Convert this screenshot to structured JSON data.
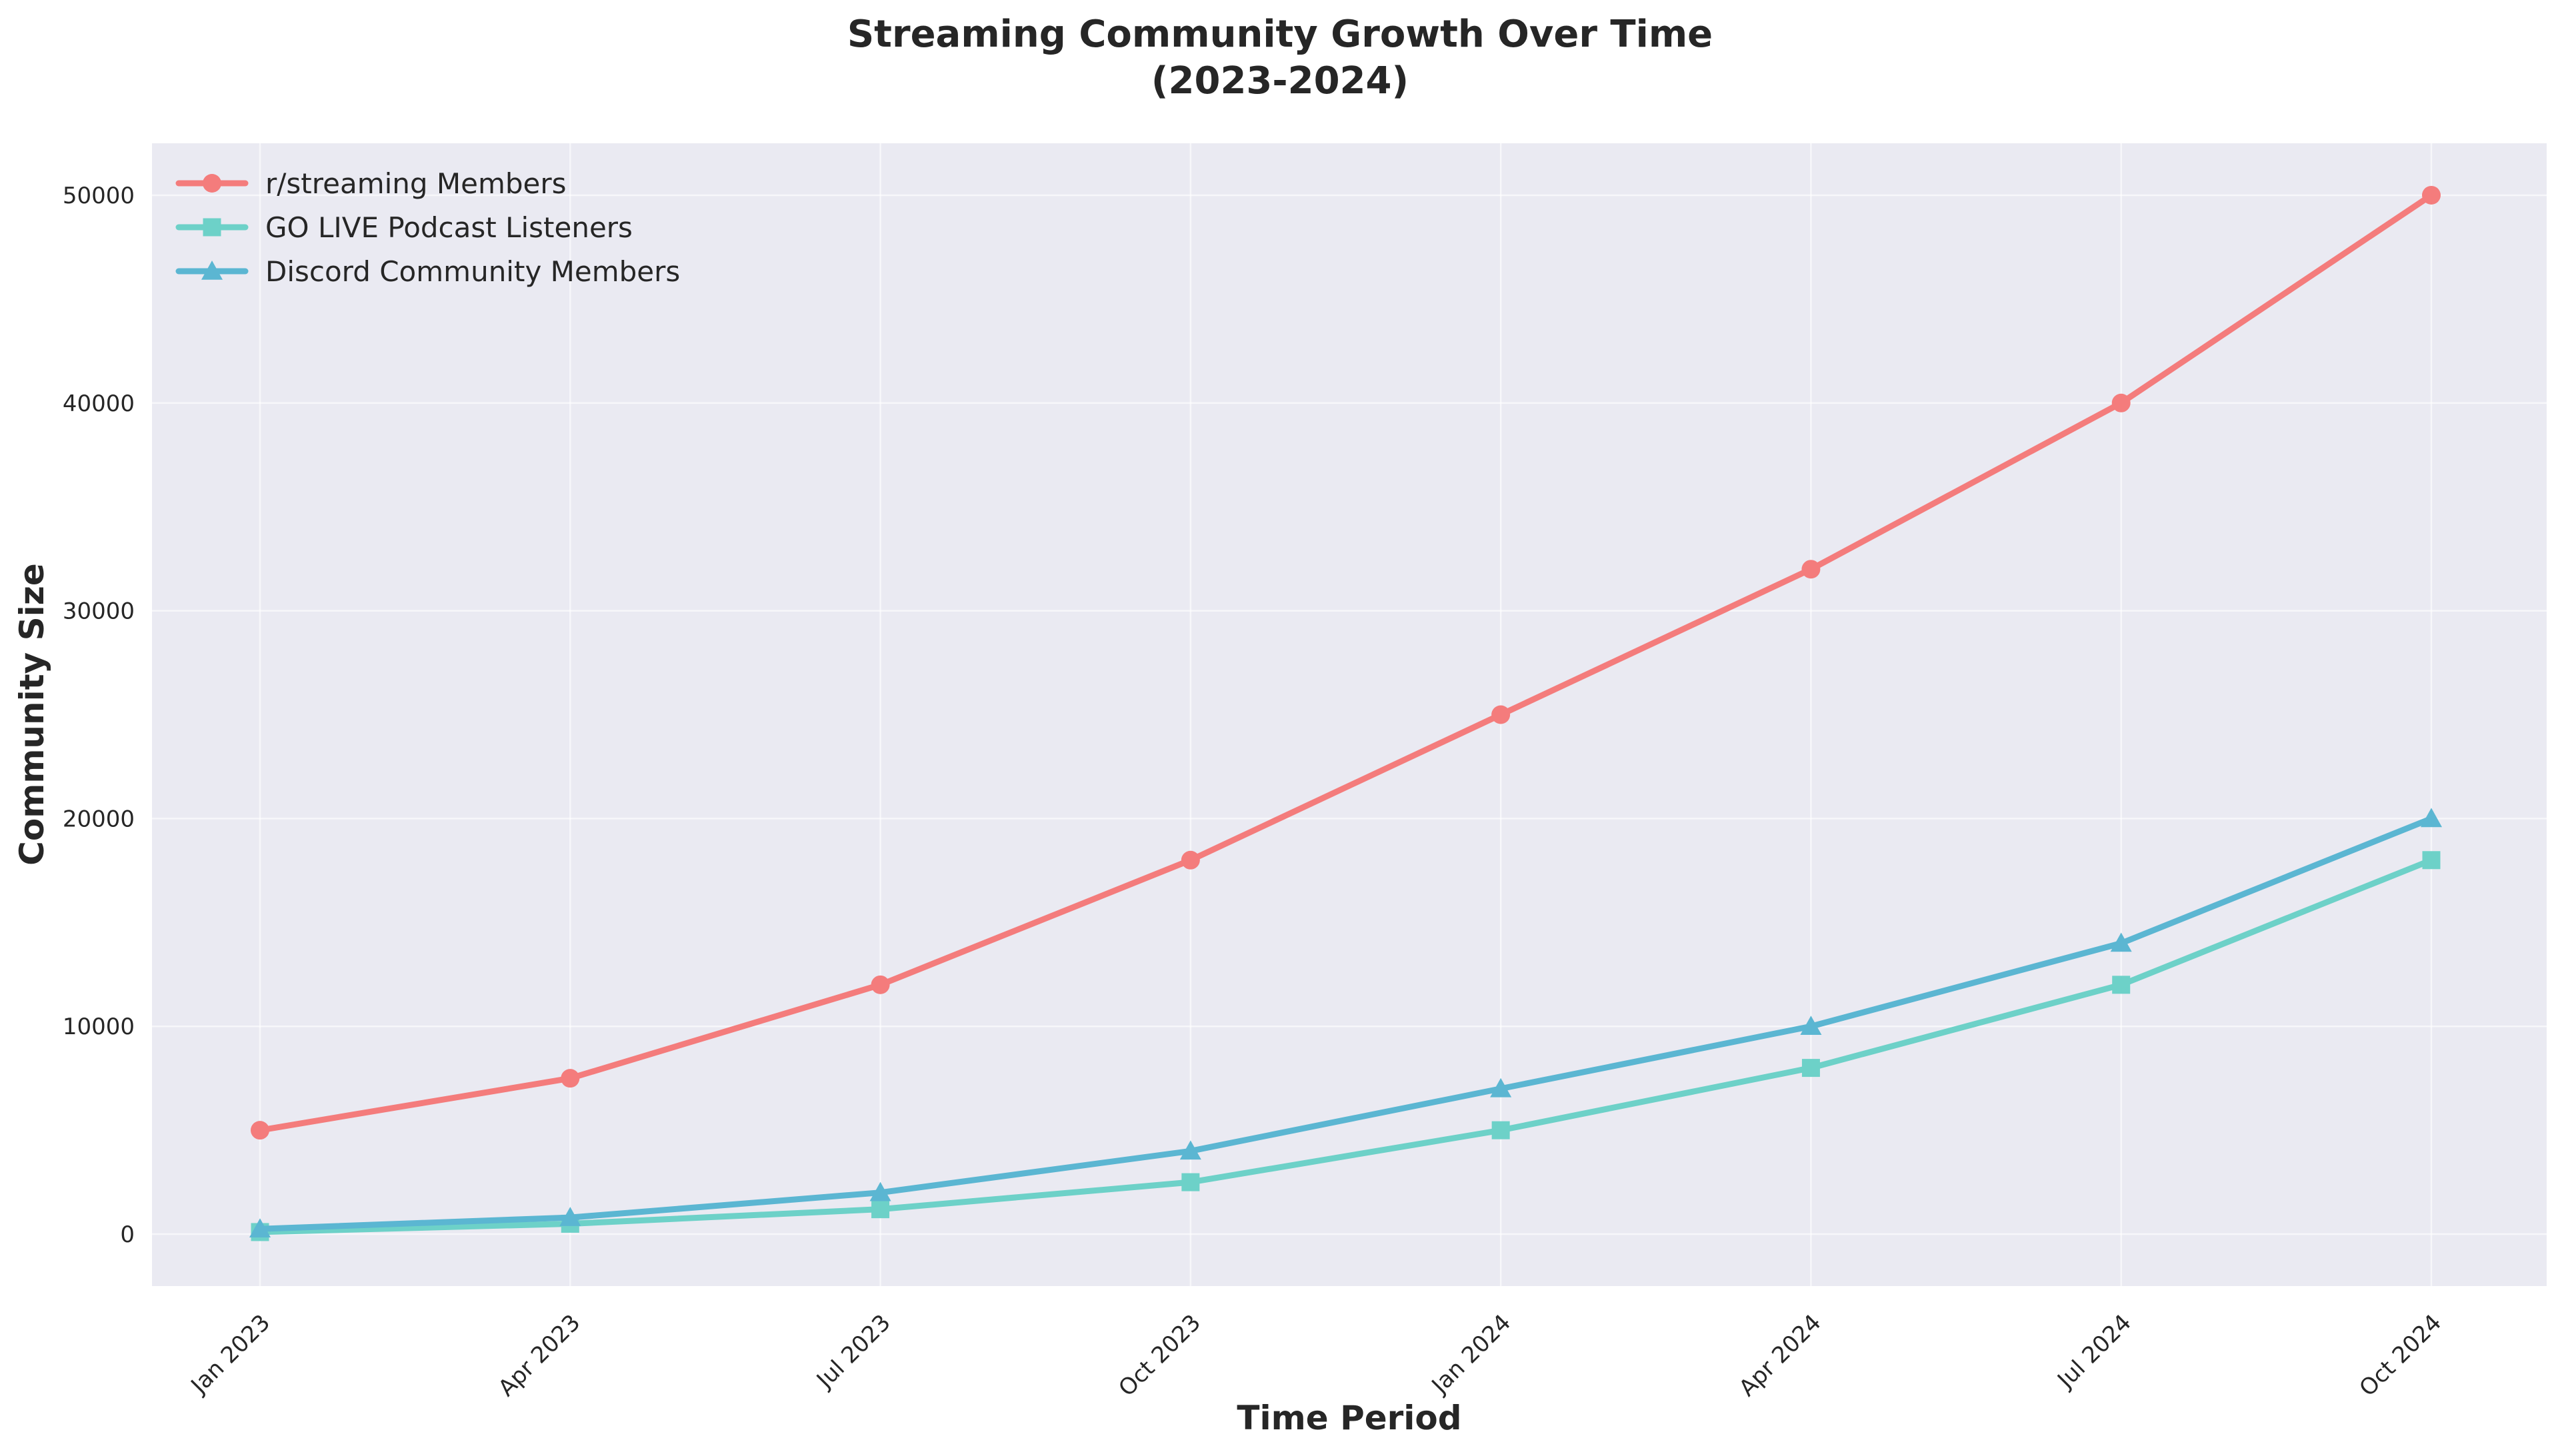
{
  "chart_data": {
    "type": "line",
    "title": "Streaming Community Growth Over Time",
    "subtitle": "(2023-2024)",
    "xlabel": "Time Period",
    "ylabel": "Community Size",
    "x": [
      "Jan 2023",
      "Apr 2023",
      "Jul 2023",
      "Oct 2023",
      "Jan 2024",
      "Apr 2024",
      "Jul 2024",
      "Oct 2024"
    ],
    "ylim": [
      -2500,
      52500
    ],
    "yticks": [
      0,
      10000,
      20000,
      30000,
      40000,
      50000
    ],
    "grid": true,
    "legend_position": "top-left",
    "series": [
      {
        "name": "r/streaming Members",
        "color": "#F47C7C",
        "marker": "circle",
        "values": [
          5000,
          7500,
          12000,
          18000,
          25000,
          32000,
          40000,
          50000
        ]
      },
      {
        "name": "GO LIVE Podcast Listeners",
        "color": "#6DD1C8",
        "marker": "square",
        "values": [
          100,
          500,
          1200,
          2500,
          5000,
          8000,
          12000,
          18000
        ]
      },
      {
        "name": "Discord Community Members",
        "color": "#5BB6D2",
        "marker": "triangle",
        "values": [
          250,
          800,
          2000,
          4000,
          7000,
          10000,
          14000,
          20000
        ]
      }
    ]
  }
}
